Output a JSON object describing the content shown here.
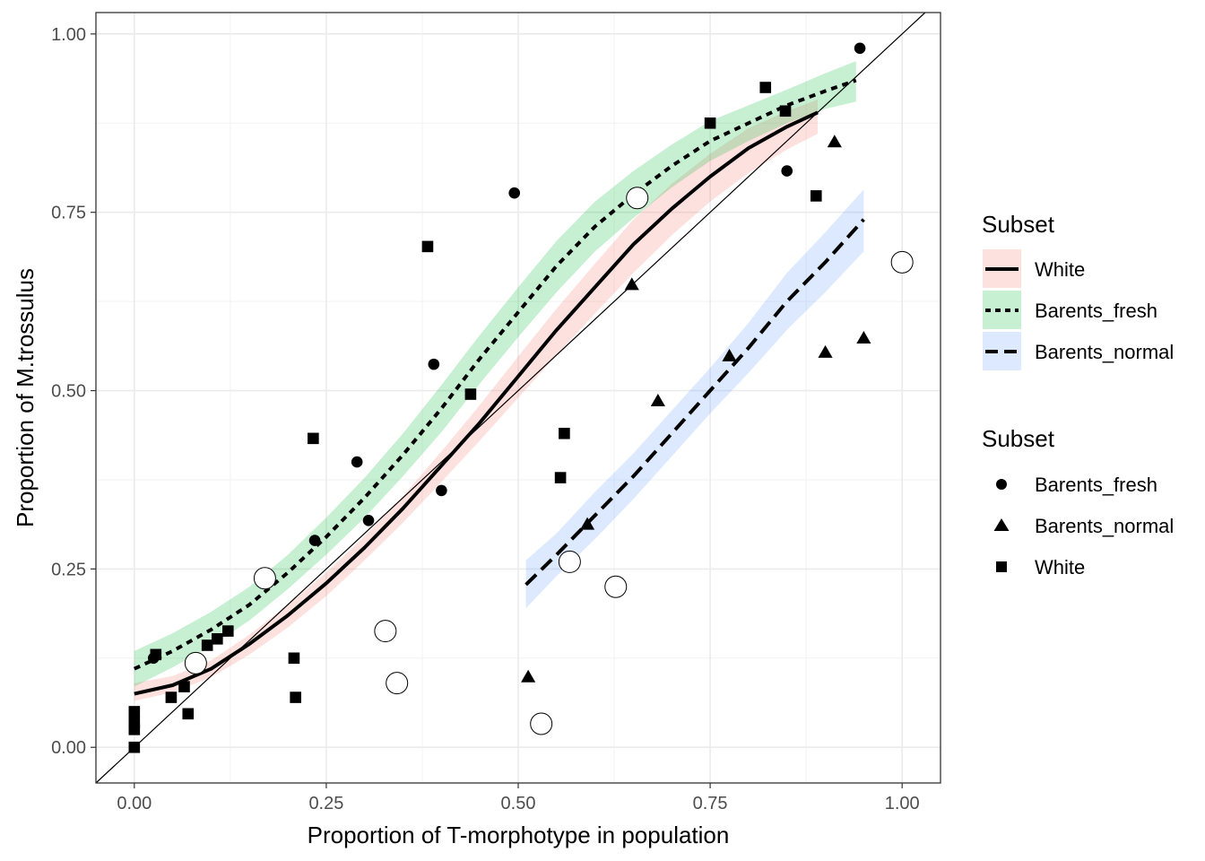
{
  "chart_data": {
    "type": "scatter",
    "xlabel": "Proportion of T-morphotype in population",
    "ylabel": "Proportion of M.trossulus",
    "xlim": [
      -0.05,
      1.05
    ],
    "ylim": [
      -0.05,
      1.03
    ],
    "x_ticks": [
      0,
      0.25,
      0.5,
      0.75,
      1
    ],
    "x_tick_labels": [
      "0.00",
      "0.25",
      "0.50",
      "0.75",
      "1.00"
    ],
    "y_ticks": [
      0,
      0.25,
      0.5,
      0.75,
      1
    ],
    "y_tick_labels": [
      "0.00",
      "0.25",
      "0.50",
      "0.75",
      "1.00"
    ],
    "grid": true,
    "reference_line": {
      "slope": 1,
      "intercept": 0
    },
    "fit_legend": {
      "title": "Subset",
      "items": [
        {
          "label": "White",
          "linestyle": "solid",
          "fill": "#f8766d"
        },
        {
          "label": "Barents_fresh",
          "linestyle": "dotted",
          "fill": "#00ba38"
        },
        {
          "label": "Barents_normal",
          "linestyle": "dashed",
          "fill": "#619cff"
        }
      ]
    },
    "point_legend": {
      "title": "Subset",
      "items": [
        {
          "label": "Barents_fresh",
          "shape": "circle"
        },
        {
          "label": "Barents_normal",
          "shape": "triangle"
        },
        {
          "label": "White",
          "shape": "square"
        }
      ]
    },
    "fits": [
      {
        "name": "White",
        "linestyle": "solid",
        "color": "#f8766d",
        "x": [
          0,
          0.05,
          0.1,
          0.15,
          0.2,
          0.25,
          0.3,
          0.35,
          0.4,
          0.45,
          0.5,
          0.55,
          0.6,
          0.65,
          0.7,
          0.75,
          0.8,
          0.85,
          0.89
        ],
        "y": [
          0.075,
          0.087,
          0.11,
          0.145,
          0.185,
          0.23,
          0.28,
          0.335,
          0.395,
          0.455,
          0.52,
          0.585,
          0.645,
          0.705,
          0.755,
          0.8,
          0.84,
          0.87,
          0.89
        ],
        "lo": [
          0.065,
          0.077,
          0.098,
          0.13,
          0.168,
          0.212,
          0.262,
          0.315,
          0.372,
          0.43,
          0.49,
          0.55,
          0.608,
          0.665,
          0.718,
          0.765,
          0.805,
          0.838,
          0.86
        ],
        "hi": [
          0.09,
          0.1,
          0.122,
          0.158,
          0.2,
          0.245,
          0.296,
          0.352,
          0.415,
          0.48,
          0.548,
          0.615,
          0.678,
          0.74,
          0.79,
          0.832,
          0.868,
          0.892,
          0.908
        ]
      },
      {
        "name": "Barents_fresh",
        "linestyle": "dotted",
        "color": "#00ba38",
        "x": [
          0,
          0.05,
          0.1,
          0.15,
          0.2,
          0.25,
          0.3,
          0.35,
          0.4,
          0.45,
          0.5,
          0.55,
          0.6,
          0.65,
          0.7,
          0.75,
          0.8,
          0.85,
          0.9,
          0.94
        ],
        "y": [
          0.11,
          0.135,
          0.165,
          0.2,
          0.245,
          0.295,
          0.35,
          0.41,
          0.475,
          0.545,
          0.61,
          0.675,
          0.73,
          0.775,
          0.815,
          0.85,
          0.875,
          0.9,
          0.92,
          0.935
        ],
        "lo": [
          0.085,
          0.112,
          0.142,
          0.178,
          0.222,
          0.27,
          0.322,
          0.38,
          0.442,
          0.51,
          0.575,
          0.638,
          0.695,
          0.742,
          0.785,
          0.822,
          0.85,
          0.875,
          0.895,
          0.905
        ],
        "hi": [
          0.135,
          0.16,
          0.19,
          0.225,
          0.27,
          0.322,
          0.378,
          0.44,
          0.508,
          0.578,
          0.645,
          0.71,
          0.765,
          0.808,
          0.845,
          0.878,
          0.9,
          0.922,
          0.945,
          0.962
        ]
      },
      {
        "name": "Barents_normal",
        "linestyle": "dashed",
        "color": "#619cff",
        "x": [
          0.51,
          0.55,
          0.6,
          0.65,
          0.7,
          0.75,
          0.8,
          0.85,
          0.9,
          0.95
        ],
        "y": [
          0.228,
          0.27,
          0.325,
          0.38,
          0.44,
          0.5,
          0.56,
          0.625,
          0.68,
          0.74
        ],
        "lo": [
          0.195,
          0.24,
          0.292,
          0.348,
          0.408,
          0.468,
          0.525,
          0.585,
          0.638,
          0.695
        ],
        "hi": [
          0.262,
          0.3,
          0.358,
          0.412,
          0.472,
          0.532,
          0.595,
          0.665,
          0.722,
          0.782
        ]
      }
    ],
    "points": {
      "Barents_fresh": {
        "shape": "circle",
        "x": [
          0.025,
          0.235,
          0.29,
          0.305,
          0.39,
          0.4,
          0.495,
          0.85,
          0.945
        ],
        "y": [
          0.125,
          0.29,
          0.4,
          0.318,
          0.537,
          0.36,
          0.777,
          0.808,
          0.98
        ]
      },
      "Barents_normal": {
        "shape": "triangle",
        "x": [
          0.513,
          0.59,
          0.648,
          0.682,
          0.775,
          0.9,
          0.912,
          0.95
        ],
        "y": [
          0.098,
          0.312,
          0.648,
          0.485,
          0.548,
          0.553,
          0.848,
          0.573
        ]
      },
      "White": {
        "shape": "square",
        "x": [
          0,
          0,
          0,
          0,
          0.028,
          0.048,
          0.065,
          0.07,
          0.095,
          0.108,
          0.122,
          0.208,
          0.21,
          0.233,
          0.382,
          0.438,
          0.555,
          0.56,
          0.75,
          0.822,
          0.848,
          0.888
        ],
        "y": [
          0,
          0.025,
          0.035,
          0.05,
          0.13,
          0.07,
          0.085,
          0.047,
          0.143,
          0.152,
          0.163,
          0.125,
          0.07,
          0.433,
          0.702,
          0.495,
          0.378,
          0.44,
          0.875,
          0.925,
          0.892,
          0.773
        ]
      },
      "open_circles": {
        "shape": "open-circle",
        "x": [
          0.08,
          0.17,
          0.327,
          0.342,
          0.53,
          0.567,
          0.627,
          0.655,
          1.0
        ],
        "y": [
          0.118,
          0.237,
          0.163,
          0.09,
          0.033,
          0.26,
          0.225,
          0.77,
          0.68
        ]
      }
    }
  }
}
